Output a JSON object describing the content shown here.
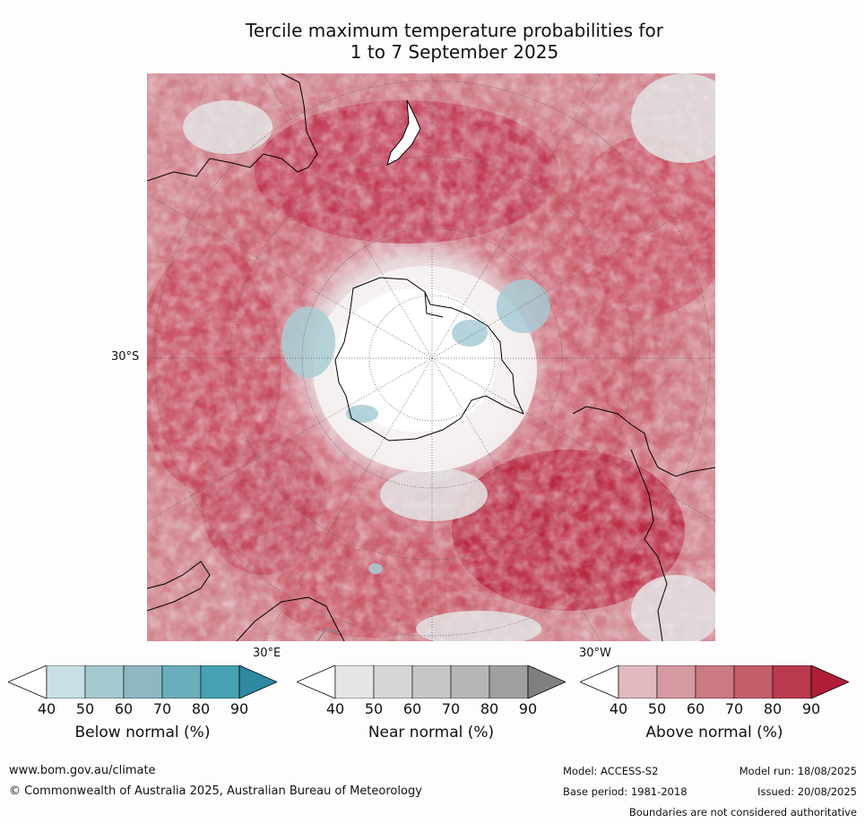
{
  "title_line1": "Tercile maximum temperature probabilities for",
  "title_line2": "1 to 7 September 2025",
  "map": {
    "lat_label": "30°S",
    "lon_label_left": "30°E",
    "lon_label_right": "30°W",
    "projection": "south-polar stereographic",
    "colors": {
      "below": [
        "#ffffff",
        "#c6e0e6",
        "#a6c8cf",
        "#8db7c2",
        "#6aaebb",
        "#45a2b2",
        "#2d8aa0"
      ],
      "near": [
        "#ffffff",
        "#e6e6e6",
        "#d6d6d6",
        "#c6c6c6",
        "#b6b6b6",
        "#a0a0a0",
        "#808080"
      ],
      "above": [
        "#ffffff",
        "#e0b8bd",
        "#d59aa1",
        "#cc7a84",
        "#c45e6b",
        "#b93a4e",
        "#b01e37"
      ]
    }
  },
  "colorbars": [
    {
      "label": "Below normal (%)",
      "ticks": [
        "40",
        "50",
        "60",
        "70",
        "80",
        "90"
      ]
    },
    {
      "label": "Near normal (%)",
      "ticks": [
        "40",
        "50",
        "60",
        "70",
        "80",
        "90"
      ]
    },
    {
      "label": "Above normal (%)",
      "ticks": [
        "40",
        "50",
        "60",
        "70",
        "80",
        "90"
      ]
    }
  ],
  "footer": {
    "website": "www.bom.gov.au/climate",
    "copyright": "© Commonwealth of Australia 2025, Australian Bureau of Meteorology",
    "model": "Model: ACCESS-S2",
    "model_run": "Model run: 18/08/2025",
    "base_period": "Base period: 1981-2018",
    "issued": "Issued: 20/08/2025",
    "disclaimer": "Boundaries are not considered authoritative"
  }
}
